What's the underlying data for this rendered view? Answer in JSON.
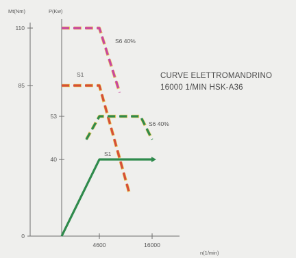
{
  "chart_data": {
    "type": "line",
    "title_lines": [
      "CURVE ELETTROMANDRINO",
      "16000 1/MIN HSK-A36"
    ],
    "xlabel": "n(1/min)",
    "ylabel_left": "Mt(Nm)",
    "ylabel_right": "P(Kw)",
    "x_ticks": [
      {
        "value": 4600,
        "label": "4600"
      },
      {
        "value": 16000,
        "label": "16000"
      }
    ],
    "y_left_ticks": [
      {
        "value": 0,
        "label": "0"
      },
      {
        "value": 85,
        "label": "85"
      },
      {
        "value": 110,
        "label": "110"
      }
    ],
    "y_right_ticks": [
      {
        "value": 40,
        "label": "40"
      },
      {
        "value": 53,
        "label": "53"
      }
    ],
    "series": [
      {
        "name": "S6 40%",
        "quantity": "torque",
        "axis": "left",
        "style": "dashed",
        "color": "#c9469f",
        "x": [
          0,
          4600,
          9000
        ],
        "y": [
          110,
          110,
          81
        ]
      },
      {
        "name": "S1",
        "quantity": "torque",
        "axis": "left",
        "style": "dashed",
        "color": "#d64f38",
        "x": [
          0,
          4600,
          11000
        ],
        "y": [
          85,
          85,
          25
        ]
      },
      {
        "name": "S6 40%",
        "quantity": "power",
        "axis": "right",
        "style": "dashed",
        "color": "#2f8a4c",
        "x": [
          3000,
          4600,
          13500,
          16000
        ],
        "y": [
          46,
          53,
          53,
          46
        ]
      },
      {
        "name": "S1",
        "quantity": "power",
        "axis": "right",
        "style": "solid",
        "color": "#2f8a4c",
        "x": [
          0,
          4600,
          16000
        ],
        "y": [
          0,
          40,
          40
        ]
      }
    ],
    "colors": {
      "background": "#efefed",
      "axis": "#6d6d6d",
      "text": "#555555",
      "highlight": "#e8c85a"
    }
  }
}
